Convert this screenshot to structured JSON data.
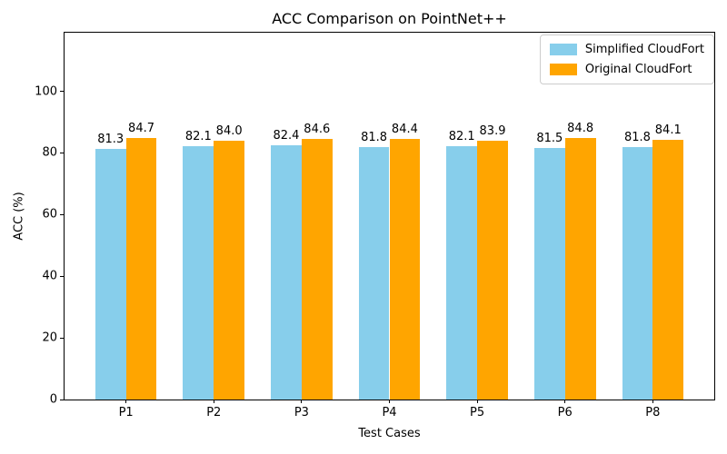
{
  "chart_data": {
    "type": "bar",
    "title": "ACC Comparison on PointNet++",
    "xlabel": "Test Cases",
    "ylabel": "ACC (%)",
    "categories": [
      "P1",
      "P2",
      "P3",
      "P4",
      "P5",
      "P6",
      "P8"
    ],
    "series": [
      {
        "name": "Simplified CloudFort",
        "color": "#87CEEB",
        "values": [
          81.3,
          82.1,
          82.4,
          81.8,
          82.1,
          81.5,
          81.8
        ]
      },
      {
        "name": "Original CloudFort",
        "color": "#FFA500",
        "values": [
          84.7,
          84.0,
          84.6,
          84.4,
          83.9,
          84.8,
          84.1
        ]
      }
    ],
    "ylim": [
      0,
      119
    ],
    "yticks": [
      0,
      20,
      40,
      60,
      80,
      100
    ],
    "bar_width_frac": 0.35,
    "value_label_decimals": 1,
    "legend_position": "upper right",
    "grid": false,
    "axes_color": "#000000",
    "background_color": "#ffffff"
  }
}
